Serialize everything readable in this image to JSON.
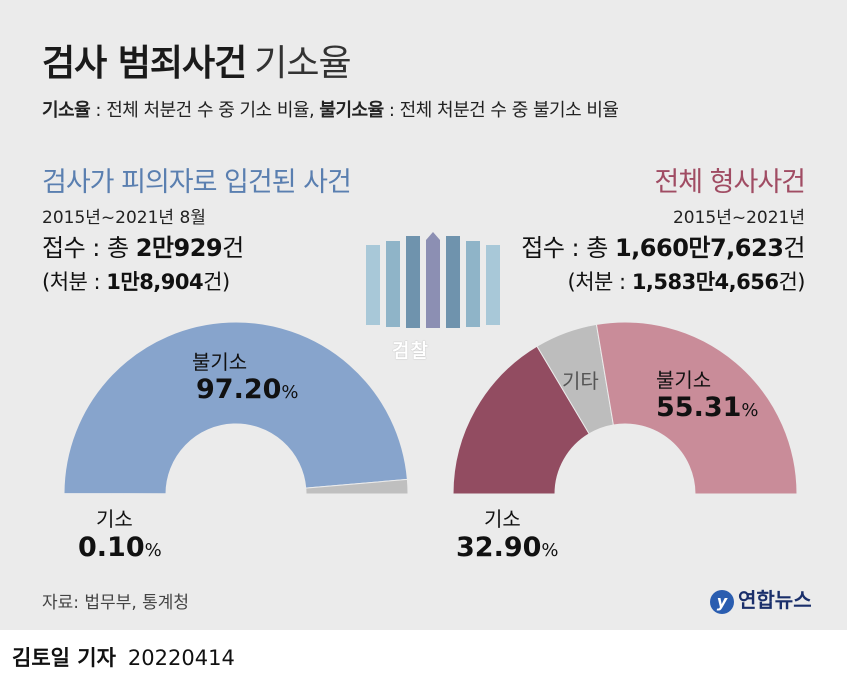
{
  "header": {
    "title_bold": "검사 범죄사건",
    "title_light": "기소율",
    "def1_term": "기소율",
    "def1_text": " : 전체 처분건 수 중 기소 비율, ",
    "def2_term": "불기소율",
    "def2_text": " : 전체 처분건 수 중 불기소 비율"
  },
  "left": {
    "title": "검사가 피의자로 입건된 사건",
    "period": "2015년~2021년 8월",
    "receipt_prefix": "접수 : 총 ",
    "receipt_value": "2만929",
    "receipt_suffix": "건",
    "handled_prefix": "(처분 : ",
    "handled_value": "1만8,904",
    "handled_suffix": "건)"
  },
  "right": {
    "title": "전체 형사사건",
    "period": "2015년~2021년",
    "receipt_prefix": "접수 : 총 ",
    "receipt_value": "1,660만7,623",
    "receipt_suffix": "건",
    "handled_prefix": "(처분 : ",
    "handled_value": "1,583만4,656",
    "handled_suffix": "건)"
  },
  "emblem": {
    "label": "검찰"
  },
  "colors": {
    "left_nonindict": "#87a4cc",
    "left_indict": "#bfbfbf",
    "right_indict": "#924c61",
    "right_other": "#bdbdbd",
    "right_nonindict": "#c98c99",
    "background": "#ebebeb"
  },
  "chart_data": [
    {
      "type": "pie",
      "style": "semi-donut",
      "title": "검사가 피의자로 입건된 사건",
      "slices": [
        {
          "label": "기소",
          "value": 0.1,
          "value_text": "0.10",
          "unit": "%"
        },
        {
          "label": "불기소",
          "value": 97.2,
          "value_text": "97.20",
          "unit": "%"
        },
        {
          "label": "",
          "value": 2.7
        }
      ]
    },
    {
      "type": "pie",
      "style": "semi-donut",
      "title": "전체 형사사건",
      "slices": [
        {
          "label": "기소",
          "value": 32.9,
          "value_text": "32.90",
          "unit": "%"
        },
        {
          "label": "기타",
          "value": 11.79
        },
        {
          "label": "불기소",
          "value": 55.31,
          "value_text": "55.31",
          "unit": "%"
        }
      ]
    }
  ],
  "footer": {
    "source": "자료: 법무부, 통계청",
    "logo_text": "연합뉴스",
    "reporter": "김토일 기자",
    "date": "20220414"
  }
}
